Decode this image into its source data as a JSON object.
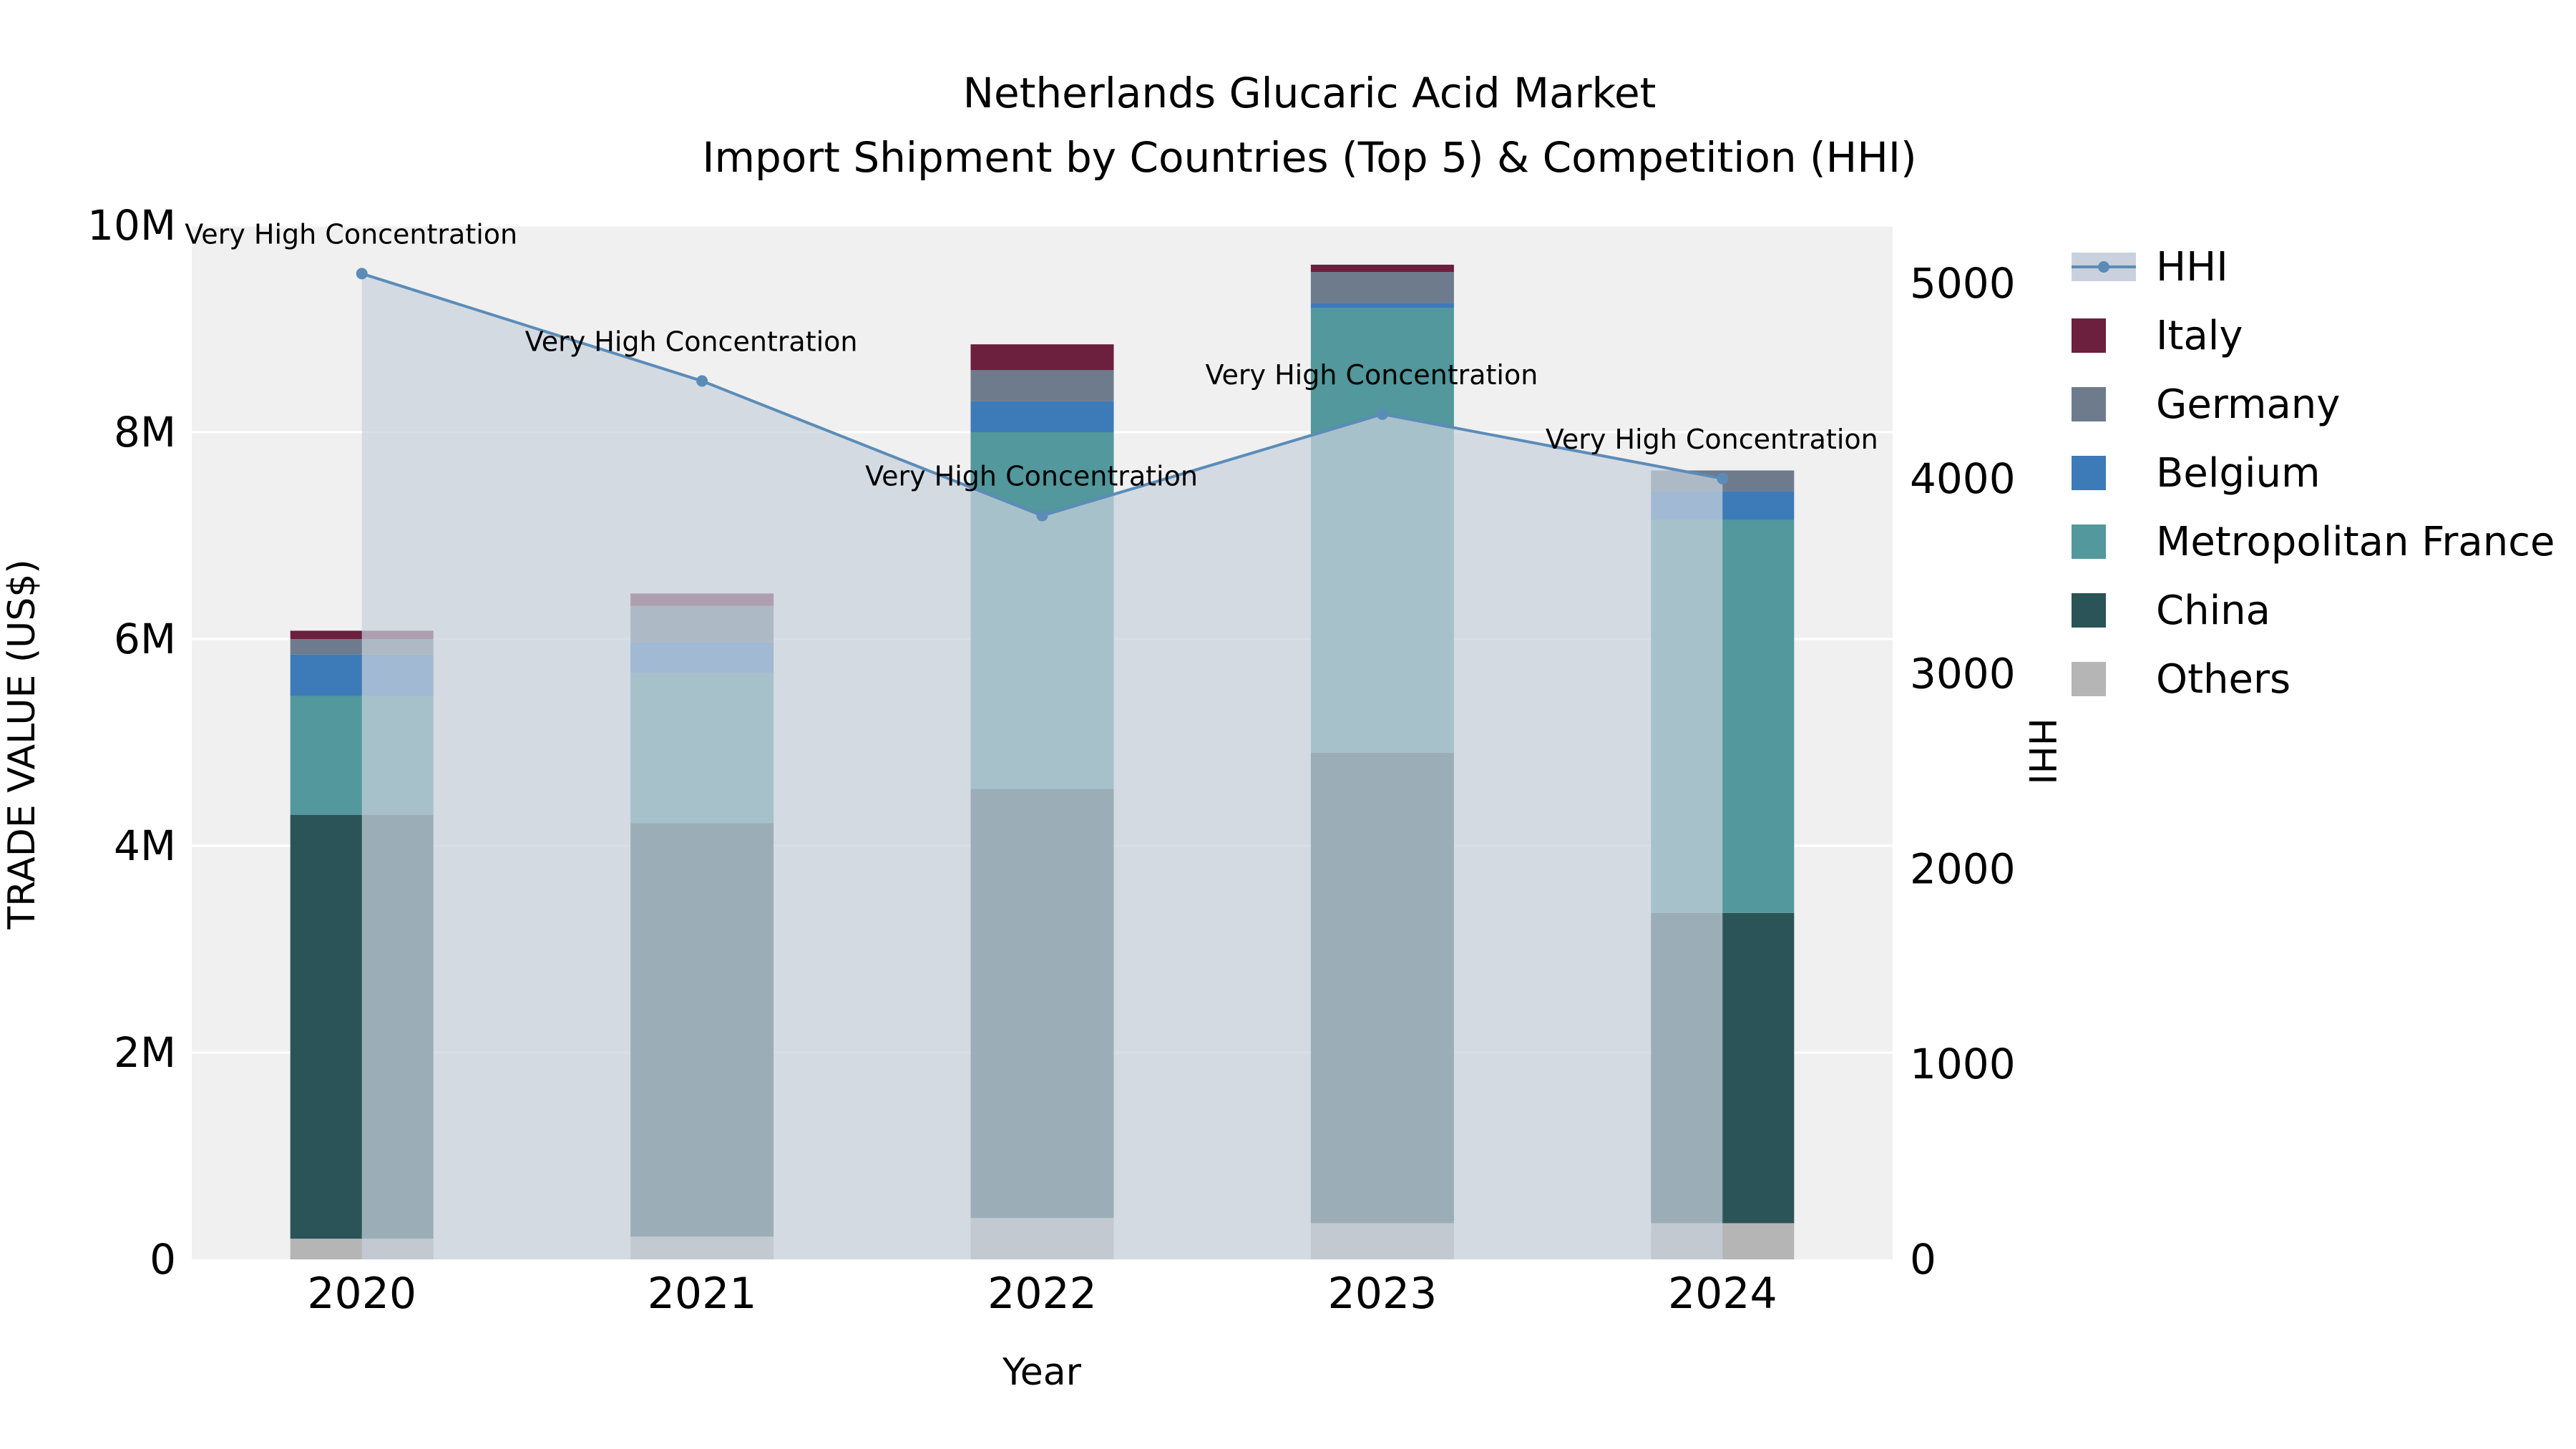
{
  "title": {
    "line1": "Netherlands Glucaric Acid Market",
    "line2": "Import Shipment by Countries (Top 5) & Competition (HHI)"
  },
  "axes": {
    "x_label": "Year",
    "y_left_label": "TRADE VALUE (US$)",
    "y_right_label": "HHI",
    "y_left_ticks": [
      {
        "value": 0,
        "label": "0"
      },
      {
        "value": 2000000,
        "label": "2M"
      },
      {
        "value": 4000000,
        "label": "4M"
      },
      {
        "value": 6000000,
        "label": "6M"
      },
      {
        "value": 8000000,
        "label": "8M"
      },
      {
        "value": 10000000,
        "label": "10M"
      }
    ],
    "y_right_ticks": [
      {
        "value": 0,
        "label": "0"
      },
      {
        "value": 1000,
        "label": "1000"
      },
      {
        "value": 2000,
        "label": "2000"
      },
      {
        "value": 3000,
        "label": "3000"
      },
      {
        "value": 4000,
        "label": "4000"
      },
      {
        "value": 5000,
        "label": "5000"
      }
    ]
  },
  "legend": {
    "items": [
      {
        "label": "HHI",
        "type": "line",
        "color": "#5b8cb8",
        "area_color": "#c8d1dd"
      },
      {
        "label": "Italy",
        "type": "swatch",
        "color": "#6d1f3e"
      },
      {
        "label": "Germany",
        "type": "swatch",
        "color": "#6e7b8d"
      },
      {
        "label": "Belgium",
        "type": "swatch",
        "color": "#3d7ab8"
      },
      {
        "label": "Metropolitan France",
        "type": "swatch",
        "color": "#52989c"
      },
      {
        "label": "China",
        "type": "swatch",
        "color": "#2a5458"
      },
      {
        "label": "Others",
        "type": "swatch",
        "color": "#b5b5b5"
      }
    ]
  },
  "colors": {
    "plot_background": "#f0f0f0",
    "gridline": "#ffffff",
    "hhi_line": "#5b8cb8",
    "hhi_area": "#c8d1dd"
  },
  "chart_data": {
    "type": "bar",
    "title": "Netherlands Glucaric Acid Market Import Shipment by Countries (Top 5) & Competition (HHI)",
    "xlabel": "Year",
    "ylabel_left": "TRADE VALUE (US$)",
    "ylabel_right": "HHI",
    "categories": [
      "2020",
      "2021",
      "2022",
      "2023",
      "2024"
    ],
    "ylim_left": [
      0,
      10000000
    ],
    "ylim_right": [
      0,
      5297
    ],
    "grid": true,
    "legend_position": "right",
    "stack_order_bottom_to_top": [
      "Others",
      "China",
      "Metropolitan France",
      "Belgium",
      "Germany",
      "Italy"
    ],
    "series": [
      {
        "name": "Others",
        "color": "#b5b5b5",
        "values": [
          200000,
          220000,
          400000,
          350000,
          350000
        ]
      },
      {
        "name": "China",
        "color": "#2a5458",
        "values": [
          4100000,
          4000000,
          4150000,
          4550000,
          3000000
        ]
      },
      {
        "name": "Metropolitan France",
        "color": "#52989c",
        "values": [
          1150000,
          1450000,
          3450000,
          4300000,
          3800000
        ]
      },
      {
        "name": "Belgium",
        "color": "#3d7ab8",
        "values": [
          400000,
          300000,
          300000,
          50000,
          280000
        ]
      },
      {
        "name": "Germany",
        "color": "#6e7b8d",
        "values": [
          150000,
          350000,
          300000,
          300000,
          200000
        ]
      },
      {
        "name": "Italy",
        "color": "#6d1f3e",
        "values": [
          80000,
          120000,
          250000,
          70000,
          0
        ]
      }
    ],
    "hhi_line": {
      "name": "HHI",
      "color": "#5b8cb8",
      "area_color": "#c8d1dd",
      "values": [
        5050,
        4500,
        3810,
        4330,
        4000
      ],
      "annotations": [
        "Very High Concentration",
        "Very High Concentration",
        "Very High Concentration",
        "Very High Concentration",
        "Very High Concentration"
      ]
    }
  }
}
